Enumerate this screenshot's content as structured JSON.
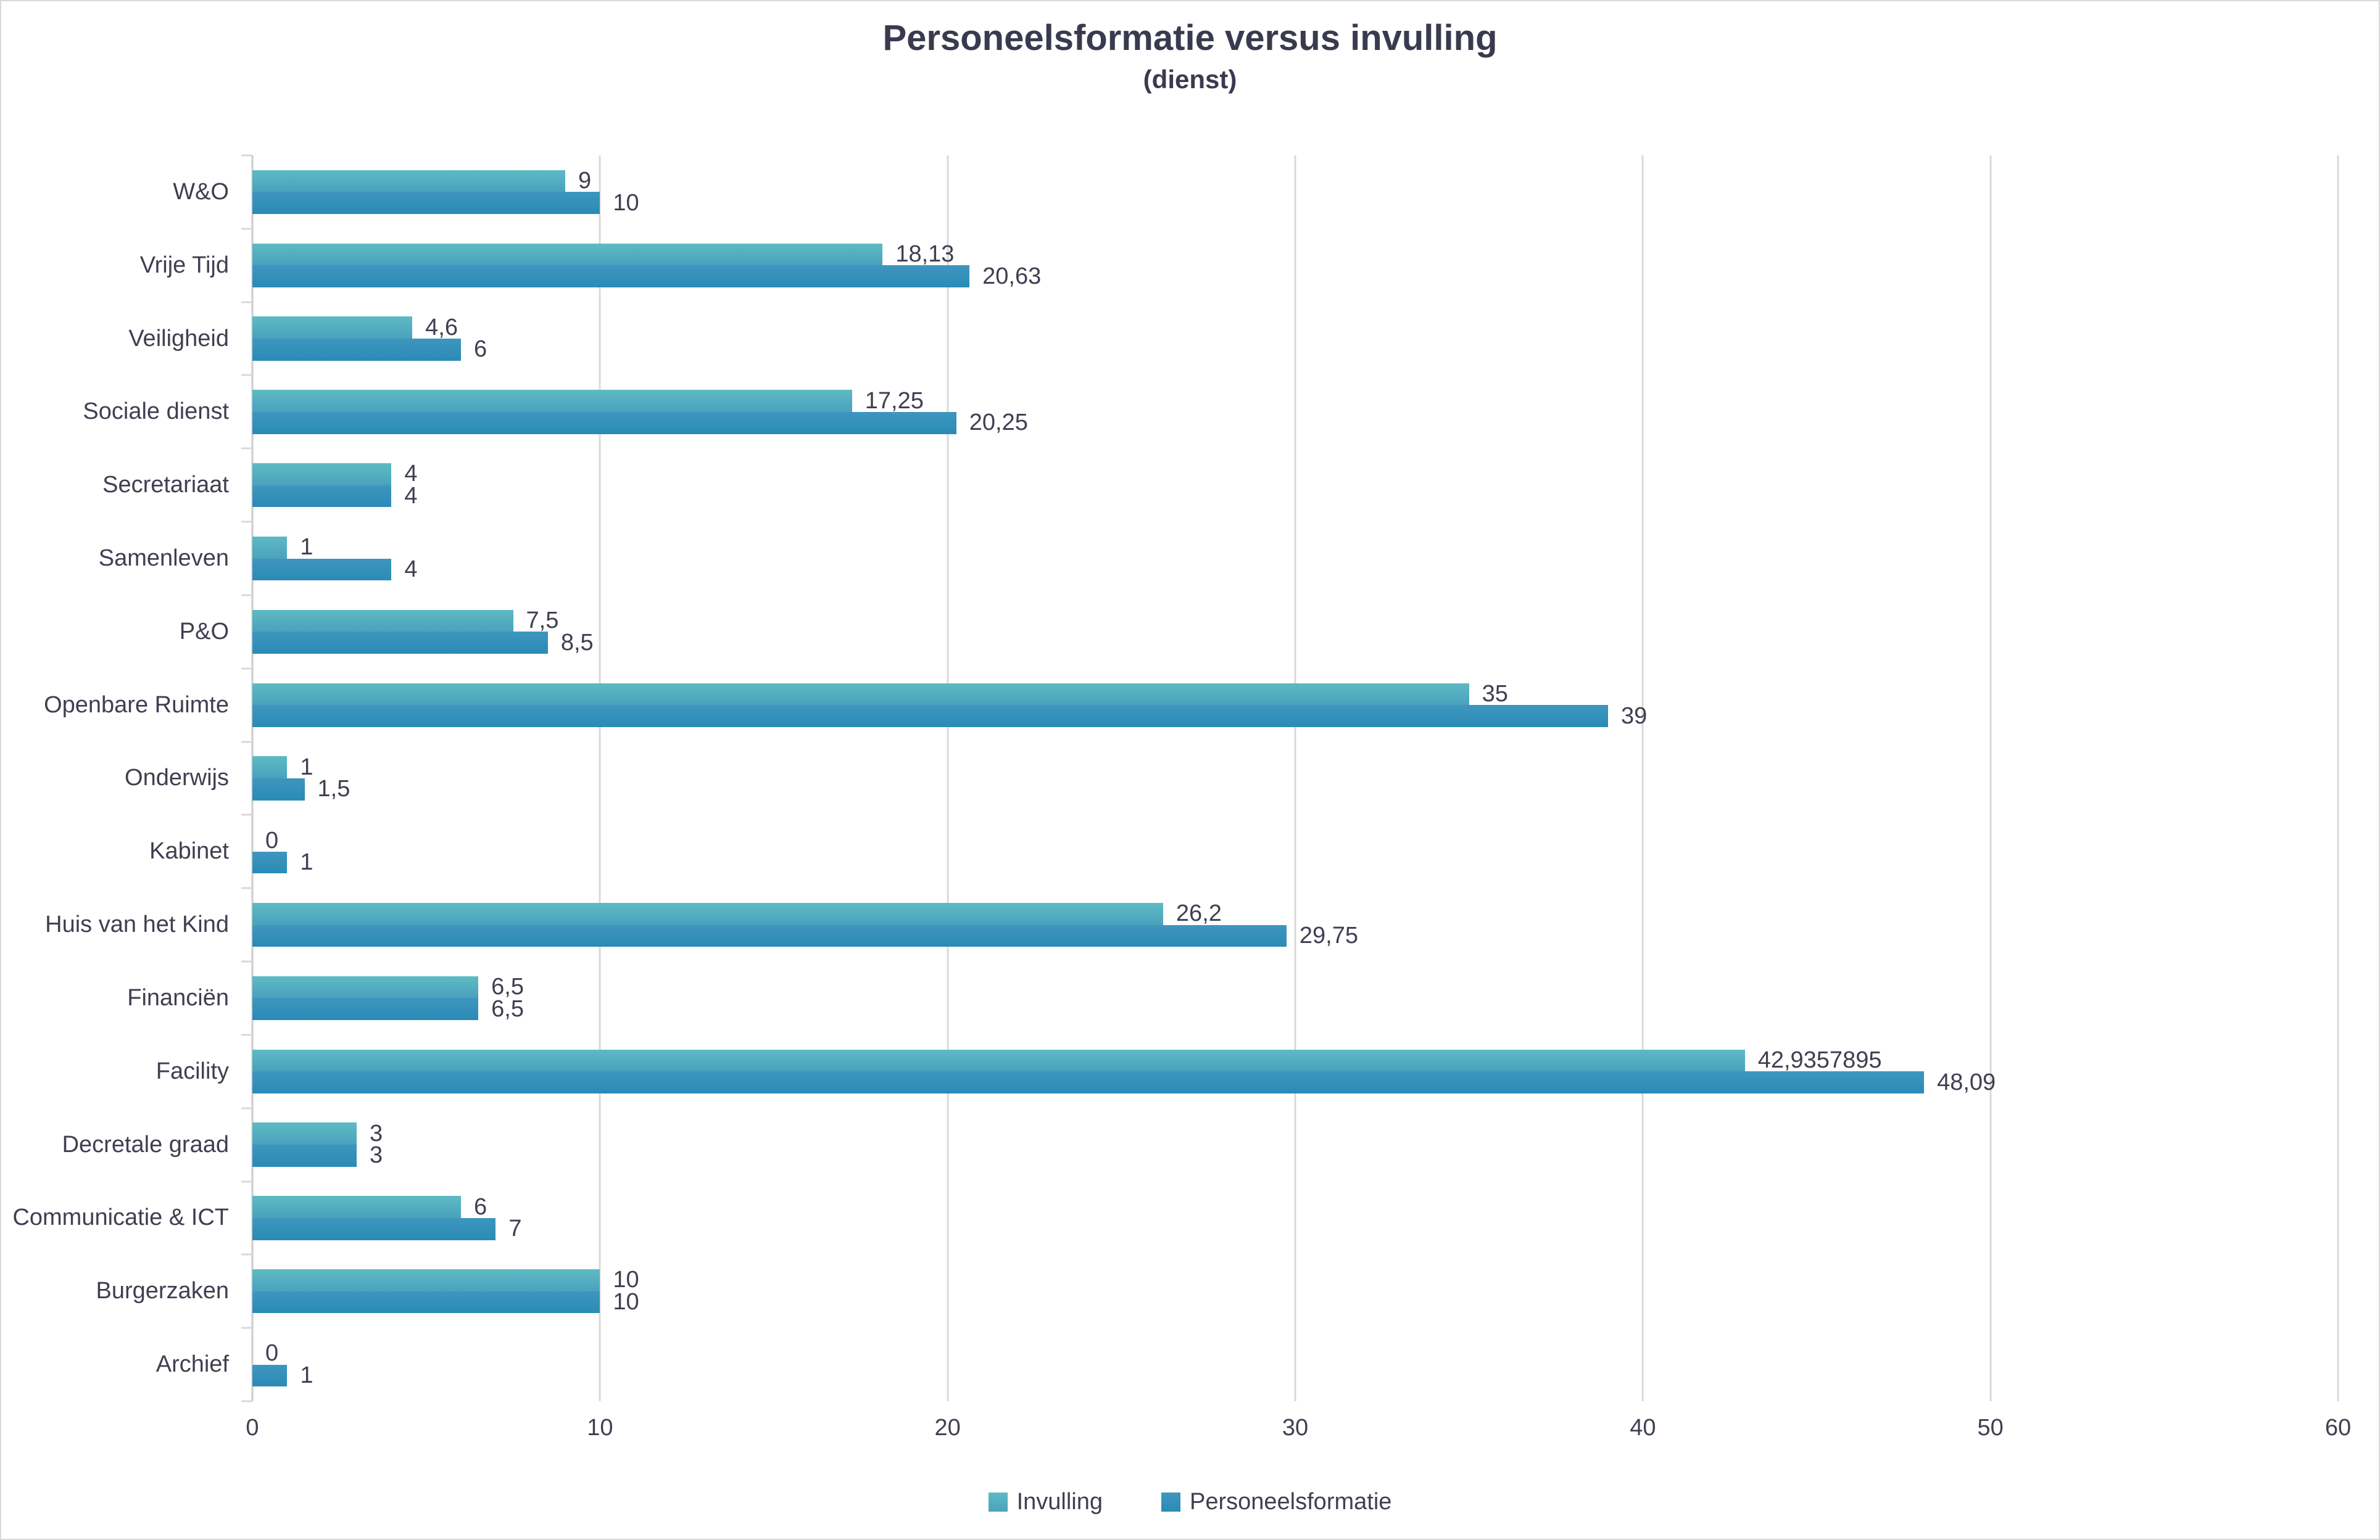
{
  "title": "Personeelsformatie versus invulling",
  "subtitle": "(dienst)",
  "colors": {
    "invulling_top": "#5DBBC3",
    "invulling_bottom": "#4AA1BD",
    "personeelsformatie_top": "#3E96BE",
    "personeelsformatie_bottom": "#2A8BB6",
    "gridline": "#D9D9D9",
    "axis": "#CBCBCB",
    "text": "#3F3F51"
  },
  "chart_data": {
    "type": "bar",
    "orientation": "horizontal",
    "title": "Personeelsformatie versus invulling",
    "subtitle": "(dienst)",
    "categories": [
      "W&O",
      "Vrije Tijd",
      "Veiligheid",
      "Sociale dienst",
      "Secretariaat",
      "Samenleven",
      "P&O",
      "Openbare Ruimte",
      "Onderwijs",
      "Kabinet",
      "Huis van het Kind",
      "Financiën",
      "Facility",
      "Decretale graad",
      "Communicatie & ICT",
      "Burgerzaken",
      "Archief"
    ],
    "series": [
      {
        "name": "Invulling",
        "values": [
          9,
          18.13,
          4.6,
          17.25,
          4,
          1,
          7.5,
          35,
          1,
          0,
          26.2,
          6.5,
          42.9357895,
          3,
          6,
          10,
          0
        ],
        "labels": [
          "9",
          "18,13",
          "4,6",
          "17,25",
          "4",
          "1",
          "7,5",
          "35",
          "1",
          "0",
          "26,2",
          "6,5",
          "42,9357895",
          "3",
          "6",
          "10",
          "0"
        ]
      },
      {
        "name": "Personeelsformatie",
        "values": [
          10,
          20.63,
          6,
          20.25,
          4,
          4,
          8.5,
          39,
          1.5,
          1,
          29.75,
          6.5,
          48.09,
          3,
          7,
          10,
          1
        ],
        "labels": [
          "10",
          "20,63",
          "6",
          "20,25",
          "4",
          "4",
          "8,5",
          "39",
          "1,5",
          "1",
          "29,75",
          "6,5",
          "48,09",
          "3",
          "7",
          "10",
          "1"
        ]
      }
    ],
    "xlim": [
      0,
      60
    ],
    "xticks": [
      0,
      10,
      20,
      30,
      40,
      50,
      60
    ],
    "grid": "vertical",
    "legend_position": "bottom"
  }
}
